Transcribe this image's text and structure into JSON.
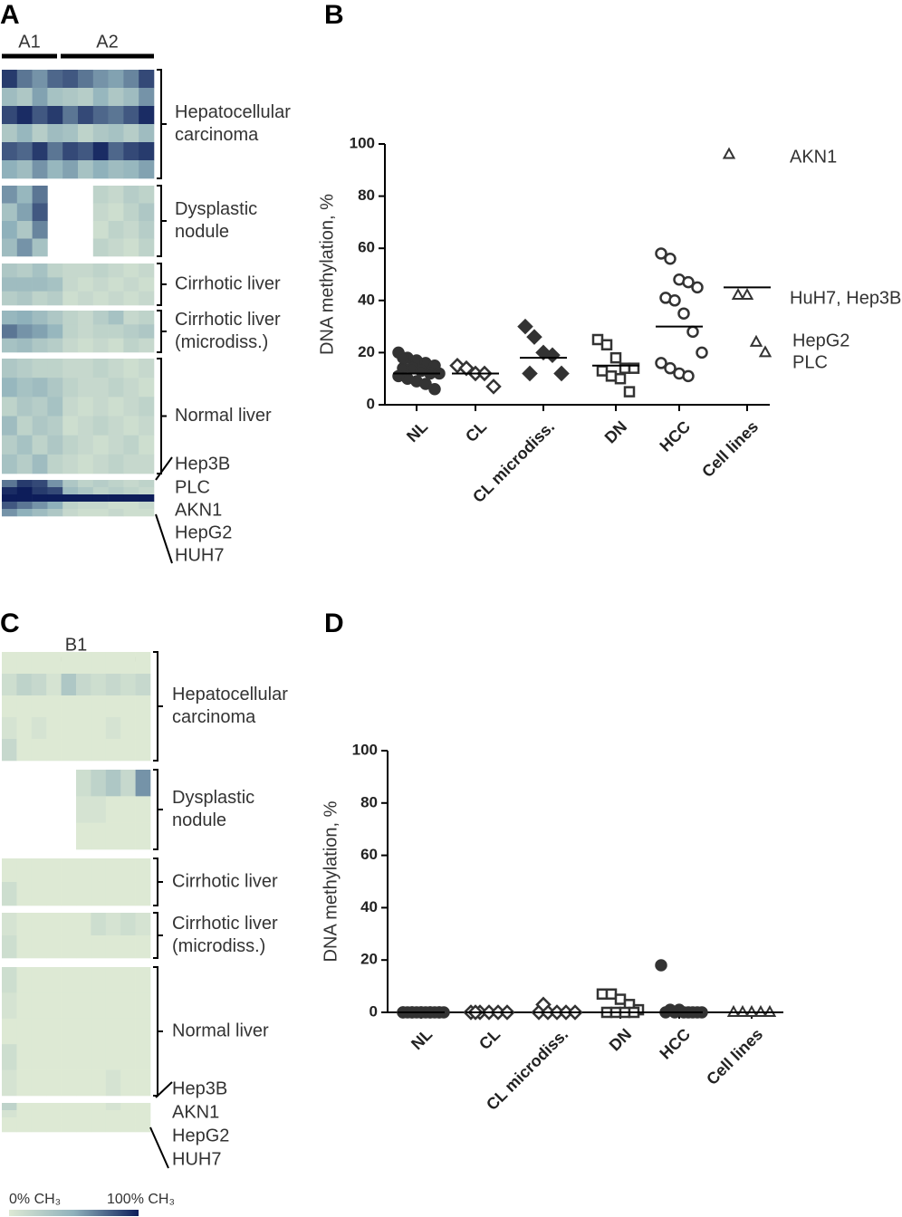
{
  "chart_data": [
    {
      "type": "heatmap",
      "panel": "A",
      "column_groups": [
        "A1",
        "A2"
      ],
      "groups": [
        {
          "label": [
            "Hepatocellular",
            "carcinoma"
          ],
          "values": [
            [
              90,
              70,
              60,
              75,
              80,
              70,
              60,
              55,
              65,
              85
            ],
            [
              40,
              30,
              55,
              35,
              30,
              25,
              45,
              30,
              40,
              60
            ],
            [
              85,
              95,
              80,
              90,
              70,
              85,
              75,
              70,
              80,
              95
            ],
            [
              30,
              45,
              25,
              40,
              35,
              20,
              30,
              35,
              25,
              40
            ],
            [
              80,
              75,
              90,
              70,
              85,
              80,
              95,
              75,
              85,
              90
            ],
            [
              50,
              40,
              60,
              45,
              55,
              35,
              50,
              40,
              45,
              55
            ]
          ]
        },
        {
          "label": [
            "Dysplastic",
            "nodule"
          ],
          "values": [
            [
              60,
              45,
              70,
              null,
              null,
              null,
              20,
              15,
              25,
              20
            ],
            [
              35,
              55,
              80,
              null,
              null,
              null,
              15,
              10,
              20,
              30
            ],
            [
              50,
              30,
              65,
              null,
              null,
              null,
              10,
              20,
              15,
              25
            ],
            [
              40,
              60,
              35,
              null,
              null,
              null,
              20,
              15,
              10,
              20
            ]
          ]
        },
        {
          "label": [
            "Cirrhotic liver"
          ],
          "values": [
            [
              30,
              25,
              35,
              20,
              15,
              15,
              20,
              15,
              10,
              15
            ],
            [
              40,
              40,
              40,
              35,
              15,
              10,
              15,
              10,
              15,
              10
            ],
            [
              25,
              30,
              20,
              25,
              10,
              15,
              10,
              15,
              10,
              15
            ]
          ]
        },
        {
          "label": [
            "Cirrhotic liver",
            "(microdiss.)"
          ],
          "values": [
            [
              45,
              50,
              40,
              30,
              20,
              15,
              25,
              35,
              15,
              20
            ],
            [
              70,
              60,
              55,
              45,
              20,
              15,
              20,
              20,
              25,
              30
            ],
            [
              35,
              40,
              30,
              25,
              15,
              10,
              15,
              10,
              20,
              15
            ]
          ]
        },
        {
          "label": [
            "Normal liver"
          ],
          "values": [
            [
              30,
              25,
              20,
              20,
              15,
              15,
              20,
              15,
              10,
              15
            ],
            [
              45,
              35,
              40,
              30,
              20,
              15,
              15,
              20,
              15,
              10
            ],
            [
              20,
              30,
              25,
              35,
              15,
              10,
              15,
              10,
              15,
              20
            ],
            [
              40,
              20,
              30,
              25,
              10,
              15,
              20,
              15,
              10,
              15
            ],
            [
              25,
              35,
              20,
              30,
              20,
              15,
              10,
              15,
              20,
              10
            ],
            [
              35,
              25,
              40,
              20,
              15,
              10,
              15,
              20,
              15,
              15
            ]
          ]
        },
        {
          "row_labels": [
            "Hep3B",
            "PLC",
            "AKN1",
            "HepG2",
            "HUH7"
          ],
          "values": [
            [
              70,
              90,
              85,
              60,
              30,
              20,
              25,
              20,
              15,
              20
            ],
            [
              95,
              100,
              90,
              85,
              40,
              30,
              20,
              25,
              20,
              15
            ],
            [
              100,
              100,
              100,
              100,
              100,
              100,
              100,
              100,
              100,
              100
            ],
            [
              80,
              70,
              60,
              50,
              20,
              15,
              15,
              10,
              10,
              15
            ],
            [
              60,
              50,
              40,
              30,
              15,
              10,
              10,
              15,
              10,
              10
            ]
          ]
        }
      ]
    },
    {
      "type": "dot",
      "panel": "B",
      "ylabel": "DNA methylation, %",
      "categories": [
        "NL",
        "CL",
        "CL microdiss.",
        "DN",
        "HCC",
        "Cell lines"
      ],
      "markers": [
        "circle-filled",
        "diamond-open",
        "diamond-filled",
        "square-open",
        "circle-open",
        "triangle-open"
      ],
      "values": [
        [
          20,
          18,
          17,
          16,
          15,
          14,
          14,
          13,
          12,
          12,
          11,
          10,
          9,
          8,
          6,
          18
        ],
        [
          15,
          14,
          12,
          12,
          7
        ],
        [
          30,
          26,
          20,
          19,
          12,
          12
        ],
        [
          25,
          23,
          18,
          14,
          14,
          13,
          11,
          10,
          5
        ],
        [
          58,
          56,
          48,
          47,
          45,
          41,
          40,
          35,
          28,
          20,
          16,
          14,
          12,
          11
        ],
        [
          96,
          42,
          42,
          24,
          20
        ]
      ],
      "means": [
        12,
        12,
        18,
        15,
        30,
        45
      ],
      "ylim": [
        0,
        100
      ],
      "yticks": [
        0,
        20,
        40,
        60,
        80,
        100
      ],
      "annotations": [
        "AKN1",
        "HuH7, Hep3B",
        "HepG2",
        "PLC"
      ]
    },
    {
      "type": "heatmap",
      "panel": "C",
      "column_groups": [
        "B1"
      ],
      "groups": [
        {
          "label": [
            "Hepatocellular",
            "carcinoma"
          ],
          "values": [
            [
              0,
              0,
              0,
              0,
              0,
              0,
              0,
              0,
              0,
              0
            ],
            [
              10,
              20,
              15,
              5,
              30,
              15,
              10,
              15,
              10,
              15
            ],
            [
              0,
              0,
              0,
              0,
              0,
              0,
              0,
              0,
              0,
              0
            ],
            [
              5,
              0,
              5,
              0,
              0,
              0,
              0,
              5,
              0,
              0
            ],
            [
              15,
              0,
              0,
              0,
              0,
              0,
              0,
              0,
              0,
              0
            ]
          ]
        },
        {
          "label": [
            "Dysplastic",
            "nodule"
          ],
          "values": [
            [
              null,
              null,
              null,
              null,
              null,
              10,
              20,
              30,
              15,
              60
            ],
            [
              null,
              null,
              null,
              null,
              null,
              5,
              5,
              0,
              0,
              0
            ],
            [
              null,
              null,
              null,
              null,
              null,
              0,
              0,
              0,
              0,
              0
            ]
          ]
        },
        {
          "label": [
            "Cirrhotic liver"
          ],
          "values": [
            [
              0,
              0,
              0,
              0,
              0,
              0,
              0,
              0,
              0,
              0
            ],
            [
              10,
              0,
              0,
              0,
              0,
              0,
              0,
              0,
              0,
              0
            ]
          ]
        },
        {
          "label": [
            "Cirrhotic liver",
            "(microdiss.)"
          ],
          "values": [
            [
              5,
              0,
              0,
              0,
              0,
              0,
              10,
              5,
              10,
              5
            ],
            [
              10,
              0,
              0,
              0,
              0,
              0,
              0,
              0,
              0,
              0
            ]
          ]
        },
        {
          "label": [
            "Normal liver"
          ],
          "values": [
            [
              10,
              0,
              0,
              0,
              0,
              0,
              0,
              0,
              0,
              0
            ],
            [
              5,
              0,
              0,
              0,
              0,
              0,
              0,
              0,
              0,
              0
            ],
            [
              0,
              0,
              0,
              0,
              0,
              0,
              0,
              0,
              0,
              0
            ],
            [
              10,
              0,
              0,
              0,
              0,
              0,
              0,
              0,
              0,
              0
            ],
            [
              5,
              0,
              0,
              0,
              0,
              0,
              0,
              5,
              0,
              0
            ]
          ]
        },
        {
          "row_labels": [
            "Hep3B",
            "AKN1",
            "HepG2",
            "HUH7"
          ],
          "values": [
            [
              20,
              0,
              0,
              0,
              0,
              0,
              0,
              5,
              0,
              0
            ],
            [
              5,
              0,
              0,
              0,
              0,
              0,
              0,
              0,
              0,
              0
            ],
            [
              0,
              0,
              0,
              0,
              0,
              0,
              0,
              0,
              0,
              0
            ],
            [
              0,
              0,
              0,
              0,
              0,
              0,
              0,
              0,
              0,
              0
            ]
          ]
        }
      ]
    },
    {
      "type": "dot",
      "panel": "D",
      "ylabel": "DNA methylation, %",
      "categories": [
        "NL",
        "CL",
        "CL microdiss.",
        "DN",
        "HCC",
        "Cell lines"
      ],
      "markers": [
        "circle-filled",
        "diamond-open",
        "diamond-open",
        "square-open",
        "circle-filled",
        "triangle-open"
      ],
      "values": [
        [
          0,
          0,
          0,
          0,
          0,
          0,
          0,
          0,
          0,
          0,
          0,
          0,
          0,
          0,
          0
        ],
        [
          0,
          0,
          0,
          0,
          0,
          0
        ],
        [
          0,
          0,
          0,
          0,
          0,
          3
        ],
        [
          7,
          7,
          5,
          3,
          1,
          0,
          0,
          0,
          0
        ],
        [
          18,
          1,
          1,
          0,
          0,
          0,
          0,
          0,
          0,
          0
        ],
        [
          0,
          0,
          0,
          0,
          0
        ]
      ],
      "means": [
        0,
        0,
        0,
        0,
        0,
        0
      ],
      "ylim": [
        0,
        100
      ],
      "yticks": [
        0,
        20,
        40,
        60,
        80,
        100
      ]
    }
  ],
  "colorbar": {
    "labels": [
      "0% CH₃",
      "100% CH₃"
    ],
    "colors": [
      "#dde9d4",
      "#8fb1bb",
      "#0d1d5a"
    ]
  }
}
